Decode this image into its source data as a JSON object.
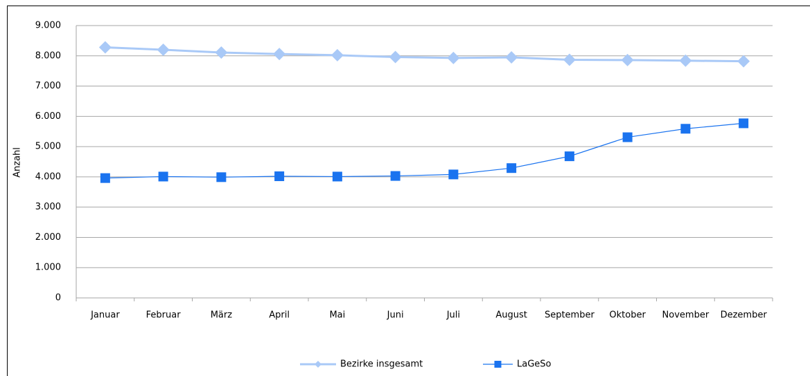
{
  "chart_data": {
    "type": "line",
    "y_label": "Anzahl",
    "categories": [
      "Januar",
      "Februar",
      "März",
      "April",
      "Mai",
      "Juni",
      "Juli",
      "August",
      "September",
      "Oktober",
      "November",
      "Dezember"
    ],
    "series": [
      {
        "name": "Bezirke insgesamt",
        "color": "#a9c9f7",
        "marker": "diamond",
        "values": [
          8280,
          8200,
          8110,
          8060,
          8020,
          7960,
          7930,
          7950,
          7870,
          7860,
          7840,
          7820
        ]
      },
      {
        "name": "LaGeSo",
        "color": "#1a73ef",
        "marker": "square",
        "values": [
          3960,
          4010,
          3990,
          4020,
          4010,
          4030,
          4080,
          4290,
          4680,
          5310,
          5590,
          5770
        ]
      }
    ],
    "ylim": [
      0,
      9000
    ],
    "yticks": [
      0,
      {
        "value": 1000,
        "label": "1.000"
      },
      {
        "value": 2000,
        "label": "2.000"
      },
      {
        "value": 3000,
        "label": "3.000"
      },
      {
        "value": 4000,
        "label": "4.000"
      },
      {
        "value": 5000,
        "label": "5.000"
      },
      {
        "value": 6000,
        "label": "6.000"
      },
      {
        "value": 7000,
        "label": "7.000"
      },
      {
        "value": 8000,
        "label": "8.000"
      },
      {
        "value": 9000,
        "label": "9.000"
      }
    ],
    "grid": true,
    "legend": "bottom"
  }
}
